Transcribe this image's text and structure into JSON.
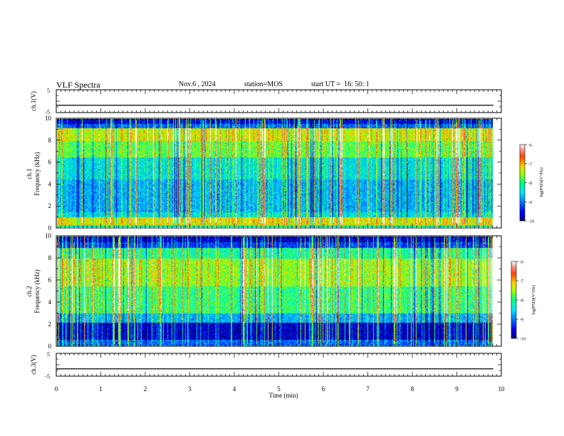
{
  "header": {
    "title": "VLF Spectra",
    "date": "Nov.6 , 2024",
    "station": "station=MOS",
    "start": "start UT =  16: 50: 1"
  },
  "chart_data": [
    {
      "type": "line",
      "panel": "ch1-waveform",
      "ylabel": "ch.1(V)",
      "ylim": [
        -5,
        5
      ],
      "yticks": [
        "5",
        "-5"
      ],
      "xlim": [
        0,
        10
      ],
      "series": [
        {
          "values": [
            -1.8,
            -1.8
          ]
        }
      ]
    },
    {
      "type": "heatmap",
      "panel": "ch1-spectrogram",
      "ylabel": "ch.1\nFrequency (kHz)",
      "ylim": [
        0,
        10
      ],
      "yticks": [
        "0",
        "2",
        "4",
        "6",
        "8",
        "10"
      ],
      "xlim": [
        0,
        9.82
      ],
      "colorbar": {
        "label": "log(PSD)(V²/Hz)",
        "range": [
          -10,
          -6
        ],
        "ticks": [
          "-6",
          "-7",
          "-8",
          "-9",
          "-10"
        ]
      }
    },
    {
      "type": "heatmap",
      "panel": "ch2-spectrogram",
      "ylabel": "ch.2\nFrequency (kHz)",
      "ylim": [
        0,
        10
      ],
      "yticks": [
        "0",
        "2",
        "4",
        "6",
        "8",
        "10"
      ],
      "xlim": [
        0,
        9.82
      ],
      "colorbar": {
        "label": "log(PSD)(V²/Hz)",
        "range": [
          -10,
          -6
        ],
        "ticks": [
          "-6",
          "-7",
          "-8",
          "-9",
          "-10"
        ]
      }
    },
    {
      "type": "line",
      "panel": "ch3-waveform",
      "ylabel": "ch.3(V)",
      "ylim": [
        -5,
        5
      ],
      "yticks": [
        "5",
        "-5"
      ],
      "xlim": [
        0,
        10
      ],
      "xlabel": "Time (min)",
      "xticks": [
        "0",
        "1",
        "2",
        "3",
        "4",
        "5",
        "6",
        "7",
        "8",
        "9",
        "10"
      ],
      "series": [
        {
          "values": [
            -1.8,
            -1.8
          ]
        }
      ]
    }
  ],
  "colors": {
    "colormap": [
      "#00007a",
      "#0000ff",
      "#0078ff",
      "#00e6ff",
      "#00ff82",
      "#a0ff00",
      "#ffd200",
      "#ff4600",
      "#ff8c8c",
      "#ffffff"
    ]
  }
}
